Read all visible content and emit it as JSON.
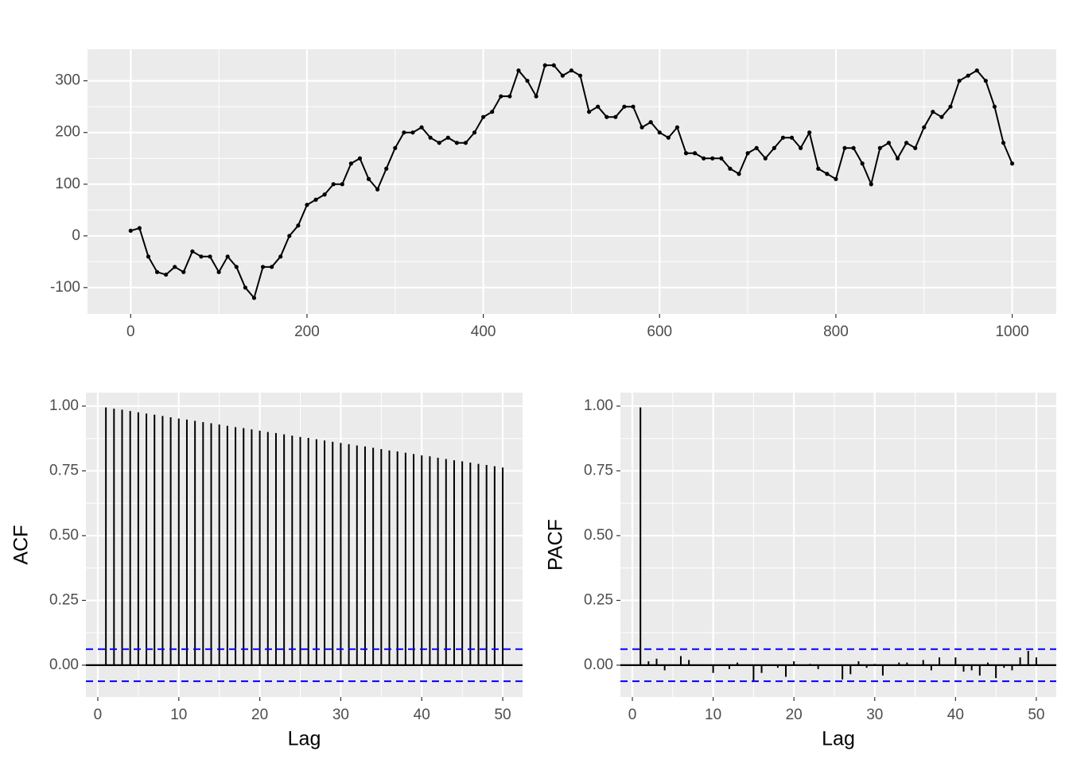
{
  "chart_data": [
    {
      "type": "line",
      "color": "#000000",
      "x": [
        0,
        10,
        20,
        30,
        40,
        50,
        60,
        70,
        80,
        90,
        100,
        110,
        120,
        130,
        140,
        150,
        160,
        170,
        180,
        190,
        200,
        210,
        220,
        230,
        240,
        250,
        260,
        270,
        280,
        290,
        300,
        310,
        320,
        330,
        340,
        350,
        360,
        370,
        380,
        390,
        400,
        410,
        420,
        430,
        440,
        450,
        460,
        470,
        480,
        490,
        500,
        510,
        520,
        530,
        540,
        550,
        560,
        570,
        580,
        590,
        600,
        610,
        620,
        630,
        640,
        650,
        660,
        670,
        680,
        690,
        700,
        710,
        720,
        730,
        740,
        750,
        760,
        770,
        780,
        790,
        800,
        810,
        820,
        830,
        840,
        850,
        860,
        870,
        880,
        890,
        900,
        910,
        920,
        930,
        940,
        950,
        960,
        970,
        980,
        990,
        1000
      ],
      "values": [
        10,
        15,
        -40,
        -70,
        -75,
        -60,
        -70,
        -30,
        -40,
        -40,
        -70,
        -40,
        -60,
        -100,
        -120,
        -60,
        -60,
        -40,
        0,
        20,
        60,
        70,
        80,
        100,
        100,
        140,
        150,
        110,
        90,
        130,
        170,
        200,
        200,
        210,
        190,
        180,
        190,
        180,
        180,
        200,
        230,
        240,
        270,
        270,
        320,
        300,
        270,
        330,
        330,
        310,
        320,
        310,
        240,
        250,
        230,
        230,
        250,
        250,
        210,
        220,
        200,
        190,
        210,
        160,
        160,
        150,
        150,
        150,
        130,
        120,
        160,
        170,
        150,
        170,
        190,
        190,
        170,
        200,
        130,
        120,
        110,
        170,
        170,
        140,
        100,
        170,
        180,
        150,
        180,
        170,
        210,
        240,
        230,
        250,
        300,
        310,
        320,
        300,
        250,
        180,
        140
      ],
      "xlim": [
        -49,
        1050
      ],
      "ylim": [
        -151,
        361
      ],
      "xticks": [
        0,
        200,
        400,
        600,
        800,
        1000
      ],
      "yticks": [
        -100,
        0,
        100,
        200,
        300
      ],
      "grid": true
    },
    {
      "type": "stem",
      "color": "#000000",
      "ylabel": "ACF",
      "xlabel": "Lag",
      "x": [
        1,
        2,
        3,
        4,
        5,
        6,
        7,
        8,
        9,
        10,
        11,
        12,
        13,
        14,
        15,
        16,
        17,
        18,
        19,
        20,
        21,
        22,
        23,
        24,
        25,
        26,
        27,
        28,
        29,
        30,
        31,
        32,
        33,
        34,
        35,
        36,
        37,
        38,
        39,
        40,
        41,
        42,
        43,
        44,
        45,
        46,
        47,
        48,
        49,
        50
      ],
      "values": [
        0.995,
        0.99,
        0.986,
        0.981,
        0.976,
        0.971,
        0.967,
        0.962,
        0.957,
        0.952,
        0.948,
        0.943,
        0.938,
        0.934,
        0.929,
        0.924,
        0.919,
        0.915,
        0.91,
        0.905,
        0.9,
        0.896,
        0.891,
        0.886,
        0.881,
        0.877,
        0.872,
        0.867,
        0.862,
        0.858,
        0.853,
        0.848,
        0.844,
        0.839,
        0.834,
        0.829,
        0.825,
        0.82,
        0.815,
        0.81,
        0.806,
        0.801,
        0.796,
        0.791,
        0.787,
        0.782,
        0.777,
        0.773,
        0.768,
        0.763
      ],
      "ci": [
        0.062,
        -0.062
      ],
      "ci_color": "#0000ff",
      "xlim": [
        -1.47,
        52.45
      ],
      "ylim": [
        -0.123,
        1.052
      ],
      "xticks": [
        0,
        10,
        20,
        30,
        40,
        50
      ],
      "yticks": [
        {
          "value": 0,
          "label": "0.00"
        },
        {
          "value": 0.25,
          "label": "0.25"
        },
        {
          "value": 0.5,
          "label": "0.50"
        },
        {
          "value": 0.75,
          "label": "0.75"
        },
        {
          "value": 1,
          "label": "1.00"
        }
      ],
      "grid": true
    },
    {
      "type": "stem",
      "color": "#000000",
      "ylabel": "PACF",
      "xlabel": "Lag",
      "x": [
        1,
        2,
        3,
        4,
        5,
        6,
        7,
        8,
        9,
        10,
        11,
        12,
        13,
        14,
        15,
        16,
        17,
        18,
        19,
        20,
        21,
        22,
        23,
        24,
        25,
        26,
        27,
        28,
        29,
        30,
        31,
        32,
        33,
        34,
        35,
        36,
        37,
        38,
        39,
        40,
        41,
        42,
        43,
        44,
        45,
        46,
        47,
        48,
        49,
        50
      ],
      "values": [
        0.995,
        0.015,
        0.025,
        -0.02,
        0,
        0.035,
        0.02,
        0,
        0,
        -0.03,
        0,
        -0.015,
        0.01,
        0,
        -0.06,
        -0.03,
        0,
        -0.01,
        -0.045,
        0.015,
        0,
        0.005,
        -0.015,
        0,
        0,
        -0.055,
        -0.035,
        0.015,
        -0.01,
        0.005,
        -0.04,
        0,
        0.01,
        0.01,
        0,
        0.02,
        -0.02,
        0.03,
        0,
        0.03,
        -0.025,
        -0.02,
        -0.04,
        0.01,
        -0.05,
        -0.01,
        -0.02,
        0.03,
        0.055,
        0.03
      ],
      "ci": [
        0.062,
        -0.062
      ],
      "ci_color": "#0000ff",
      "xlim": [
        -1.48,
        52.47
      ],
      "ylim": [
        -0.123,
        1.052
      ],
      "xticks": [
        0,
        10,
        20,
        30,
        40,
        50
      ],
      "yticks": [
        {
          "value": 0,
          "label": "0.00"
        },
        {
          "value": 0.25,
          "label": "0.25"
        },
        {
          "value": 0.5,
          "label": "0.50"
        },
        {
          "value": 0.75,
          "label": "0.75"
        },
        {
          "value": 1,
          "label": "1.00"
        }
      ],
      "grid": true
    }
  ]
}
